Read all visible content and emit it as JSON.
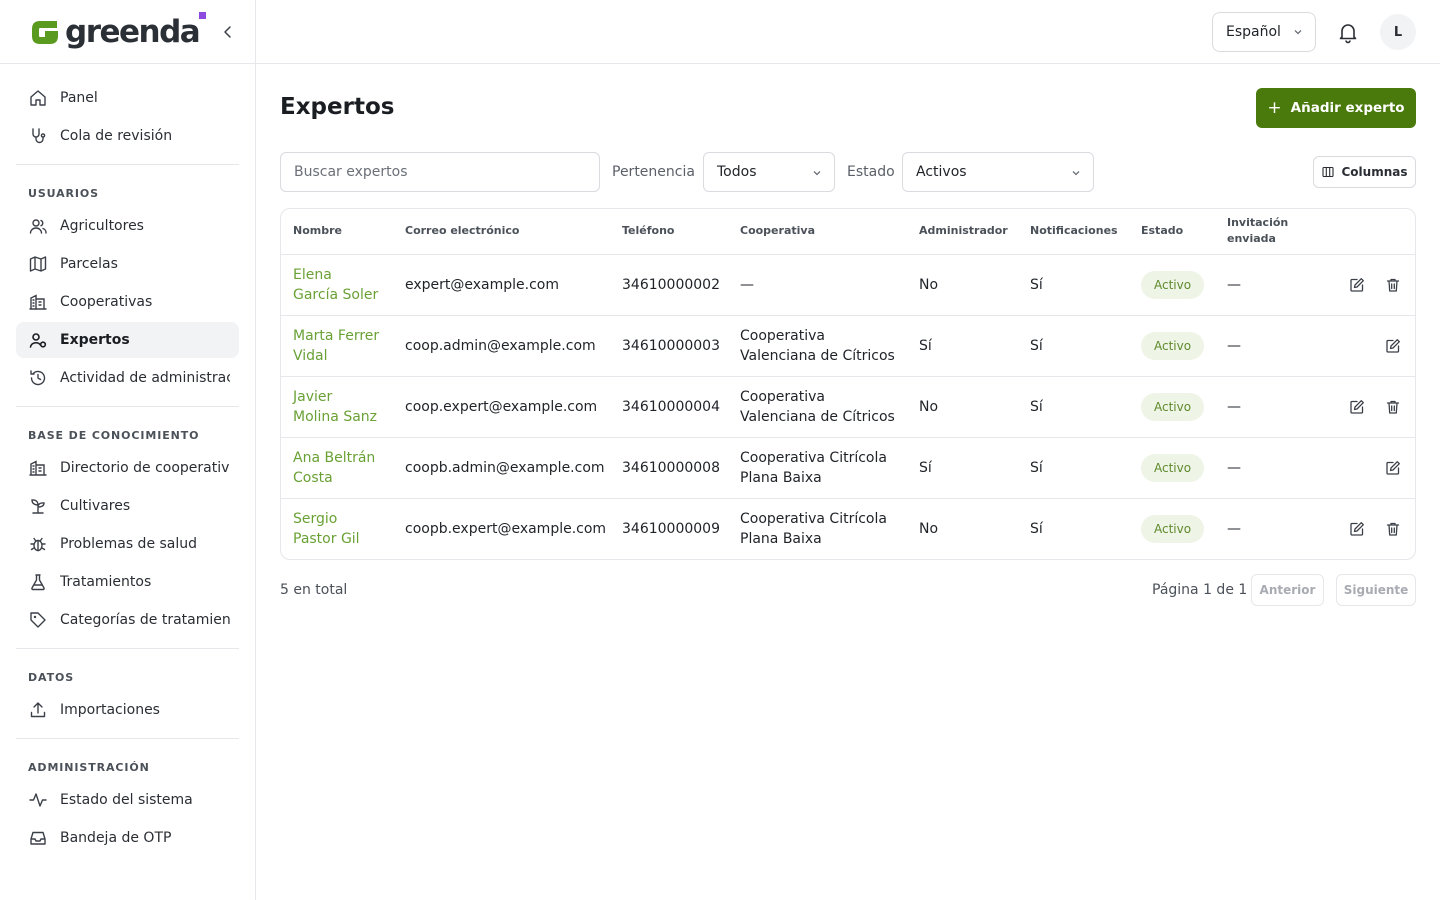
{
  "app": {
    "logo_text": "greenda",
    "brand_color": "#4a7a0c",
    "accent_color": "#8e4ae0"
  },
  "sidebar": {
    "groups": [
      {
        "title": "",
        "items": [
          {
            "label": "Panel",
            "icon": "home-icon"
          },
          {
            "label": "Cola de revisión",
            "icon": "stethoscope-icon"
          }
        ]
      },
      {
        "title": "USUARIOS",
        "items": [
          {
            "label": "Agricultores",
            "icon": "users-icon"
          },
          {
            "label": "Parcelas",
            "icon": "map-icon"
          },
          {
            "label": "Cooperativas",
            "icon": "building-icon"
          },
          {
            "label": "Expertos",
            "icon": "user-expert-icon",
            "active": true
          },
          {
            "label": "Actividad de administración",
            "icon": "history-icon"
          }
        ]
      },
      {
        "title": "BASE DE CONOCIMIENTO",
        "items": [
          {
            "label": "Directorio de cooperativas",
            "icon": "building-icon"
          },
          {
            "label": "Cultivares",
            "icon": "sprout-icon"
          },
          {
            "label": "Problemas de salud",
            "icon": "bug-icon"
          },
          {
            "label": "Tratamientos",
            "icon": "flask-icon"
          },
          {
            "label": "Categorías de tratamiento",
            "icon": "tag-icon"
          }
        ]
      },
      {
        "title": "DATOS",
        "items": [
          {
            "label": "Importaciones",
            "icon": "upload-icon"
          }
        ]
      },
      {
        "title": "ADMINISTRACIÓN",
        "items": [
          {
            "label": "Estado del sistema",
            "icon": "activity-icon"
          },
          {
            "label": "Bandeja de OTP",
            "icon": "inbox-icon"
          }
        ]
      }
    ]
  },
  "topbar": {
    "language": "Español",
    "avatar_initial": "L"
  },
  "page": {
    "title": "Expertos",
    "add_button": "Añadir experto",
    "search_placeholder": "Buscar expertos",
    "filter_membership_label": "Pertenencia",
    "filter_membership_value": "Todos",
    "filter_status_label": "Estado",
    "filter_status_value": "Activos",
    "columns_button": "Columnas"
  },
  "table": {
    "headers": [
      "Nombre",
      "Correo electrónico",
      "Teléfono",
      "Cooperativa",
      "Administrador",
      "Notificaciones",
      "Estado",
      "Invitación enviada"
    ],
    "rows": [
      {
        "name": "Elena García Soler",
        "email": "expert@example.com",
        "phone": "34610000002",
        "coop": "—",
        "admin": "No",
        "notif": "Sí",
        "status": "Activo",
        "invite": "—",
        "can_delete": true
      },
      {
        "name": "Marta Ferrer Vidal",
        "email": "coop.admin@example.com",
        "phone": "34610000003",
        "coop": "Cooperativa Valenciana de Cítricos",
        "admin": "Sí",
        "notif": "Sí",
        "status": "Activo",
        "invite": "—",
        "can_delete": false
      },
      {
        "name": "Javier Molina Sanz",
        "email": "coop.expert@example.com",
        "phone": "34610000004",
        "coop": "Cooperativa Valenciana de Cítricos",
        "admin": "No",
        "notif": "Sí",
        "status": "Activo",
        "invite": "—",
        "can_delete": true
      },
      {
        "name": "Ana Beltrán Costa",
        "email": "coopb.admin@example.com",
        "phone": "34610000008",
        "coop": "Cooperativa Citrícola Plana Baixa",
        "admin": "Sí",
        "notif": "Sí",
        "status": "Activo",
        "invite": "—",
        "can_delete": false
      },
      {
        "name": "Sergio Pastor Gil",
        "email": "coopb.expert@example.com",
        "phone": "34610000009",
        "coop": "Cooperativa Citrícola Plana Baixa",
        "admin": "No",
        "notif": "Sí",
        "status": "Activo",
        "invite": "—",
        "can_delete": true
      }
    ]
  },
  "footer": {
    "total": "5 en total",
    "page_info": "Página 1 de 1",
    "prev": "Anterior",
    "next": "Siguiente"
  }
}
